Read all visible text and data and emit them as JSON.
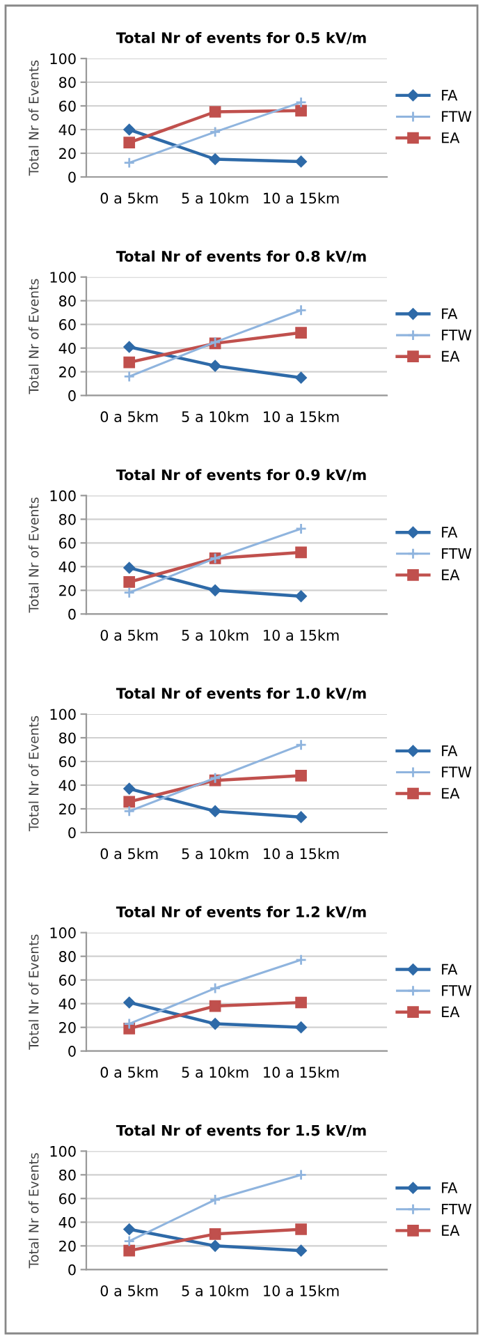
{
  "chart_data": [
    {
      "type": "line",
      "title": "Total Nr of events for 0.5 kV/m",
      "ylabel": "Total Nr of Events",
      "categories": [
        "0 a 5km",
        "5 a 10km",
        "10 a 15km"
      ],
      "ylim": [
        0,
        100
      ],
      "yticks": [
        0,
        20,
        40,
        60,
        80,
        100
      ],
      "grid": "y",
      "legend": "right",
      "series": [
        {
          "name": "FA",
          "color": "#2e6aa8",
          "marker": "diamond",
          "values": [
            40,
            15,
            13
          ]
        },
        {
          "name": "FTW",
          "color": "#8fb4de",
          "marker": "cross",
          "values": [
            12,
            38,
            63
          ]
        },
        {
          "name": "EA",
          "color": "#c0504d",
          "marker": "square",
          "values": [
            29,
            55,
            56
          ]
        }
      ]
    },
    {
      "type": "line",
      "title": "Total Nr of events for 0.8 kV/m",
      "ylabel": "Total Nr of Events",
      "categories": [
        "0 a 5km",
        "5 a 10km",
        "10 a 15km"
      ],
      "ylim": [
        0,
        100
      ],
      "yticks": [
        0,
        20,
        40,
        60,
        80,
        100
      ],
      "grid": "y",
      "legend": "right",
      "series": [
        {
          "name": "FA",
          "color": "#2e6aa8",
          "marker": "diamond",
          "values": [
            41,
            25,
            15
          ]
        },
        {
          "name": "FTW",
          "color": "#8fb4de",
          "marker": "cross",
          "values": [
            16,
            45,
            72
          ]
        },
        {
          "name": "EA",
          "color": "#c0504d",
          "marker": "square",
          "values": [
            28,
            44,
            53
          ]
        }
      ]
    },
    {
      "type": "line",
      "title": "Total Nr of events for 0.9 kV/m",
      "ylabel": "Total Nr of Events",
      "categories": [
        "0 a 5km",
        "5 a 10km",
        "10 a 15km"
      ],
      "ylim": [
        0,
        100
      ],
      "yticks": [
        0,
        20,
        40,
        60,
        80,
        100
      ],
      "grid": "y",
      "legend": "right",
      "series": [
        {
          "name": "FA",
          "color": "#2e6aa8",
          "marker": "diamond",
          "values": [
            39,
            20,
            15
          ]
        },
        {
          "name": "FTW",
          "color": "#8fb4de",
          "marker": "cross",
          "values": [
            18,
            47,
            72
          ]
        },
        {
          "name": "EA",
          "color": "#c0504d",
          "marker": "square",
          "values": [
            27,
            47,
            52
          ]
        }
      ]
    },
    {
      "type": "line",
      "title": "Total Nr of events for 1.0 kV/m",
      "ylabel": "Total Nr of Events",
      "categories": [
        "0 a 5km",
        "5 a 10km",
        "10 a 15km"
      ],
      "ylim": [
        0,
        100
      ],
      "yticks": [
        0,
        20,
        40,
        60,
        80,
        100
      ],
      "grid": "y",
      "legend": "right",
      "series": [
        {
          "name": "FA",
          "color": "#2e6aa8",
          "marker": "diamond",
          "values": [
            37,
            18,
            13
          ]
        },
        {
          "name": "FTW",
          "color": "#8fb4de",
          "marker": "cross",
          "values": [
            18,
            46,
            74
          ]
        },
        {
          "name": "EA",
          "color": "#c0504d",
          "marker": "square",
          "values": [
            26,
            44,
            48
          ]
        }
      ]
    },
    {
      "type": "line",
      "title": "Total Nr of events for 1.2 kV/m",
      "ylabel": "Total Nr of Events",
      "categories": [
        "0 a 5km",
        "5 a 10km",
        "10 a 15km"
      ],
      "ylim": [
        0,
        100
      ],
      "yticks": [
        0,
        20,
        40,
        60,
        80,
        100
      ],
      "grid": "y",
      "legend": "right",
      "series": [
        {
          "name": "FA",
          "color": "#2e6aa8",
          "marker": "diamond",
          "values": [
            41,
            23,
            20
          ]
        },
        {
          "name": "FTW",
          "color": "#8fb4de",
          "marker": "cross",
          "values": [
            23,
            53,
            77
          ]
        },
        {
          "name": "EA",
          "color": "#c0504d",
          "marker": "square",
          "values": [
            19,
            38,
            41
          ]
        }
      ]
    },
    {
      "type": "line",
      "title": "Total Nr of events for 1.5 kV/m",
      "ylabel": "Total Nr of Events",
      "categories": [
        "0 a 5km",
        "5 a 10km",
        "10 a 15km"
      ],
      "ylim": [
        0,
        100
      ],
      "yticks": [
        0,
        20,
        40,
        60,
        80,
        100
      ],
      "grid": "y",
      "legend": "right",
      "series": [
        {
          "name": "FA",
          "color": "#2e6aa8",
          "marker": "diamond",
          "values": [
            34,
            20,
            16
          ]
        },
        {
          "name": "FTW",
          "color": "#8fb4de",
          "marker": "cross",
          "values": [
            24,
            59,
            80
          ]
        },
        {
          "name": "EA",
          "color": "#c0504d",
          "marker": "square",
          "values": [
            16,
            30,
            34
          ]
        }
      ]
    }
  ]
}
